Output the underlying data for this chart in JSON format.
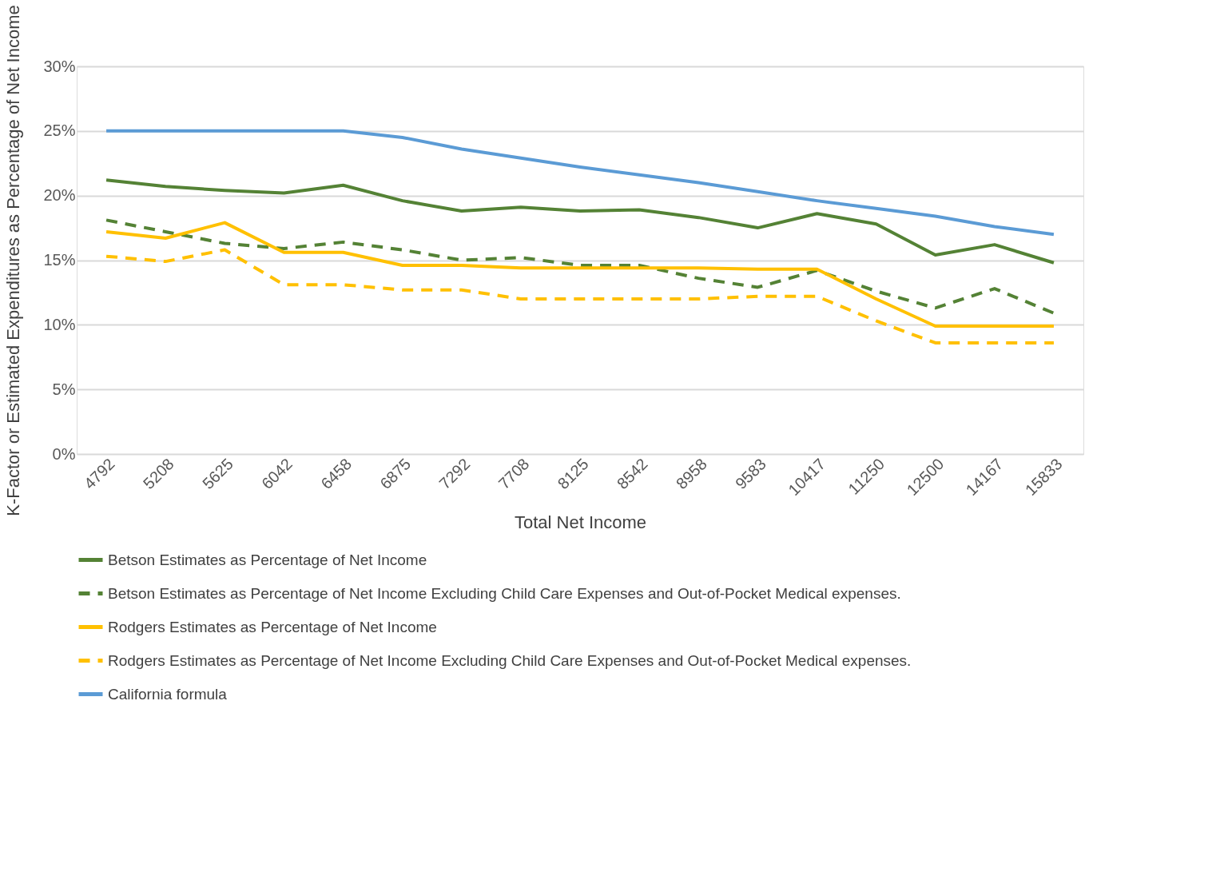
{
  "chart_data": {
    "type": "line",
    "xlabel": "Total Net Income",
    "ylabel": "K-Factor or Estimated Expenditures as Percentage of Net Income",
    "categories": [
      "4792",
      "5208",
      "5625",
      "6042",
      "6458",
      "6875",
      "7292",
      "7708",
      "8125",
      "8542",
      "8958",
      "9583",
      "10417",
      "11250",
      "12500",
      "14167",
      "15833"
    ],
    "series": [
      {
        "name": "Betson Estimates as Percentage of Net Income",
        "color": "#548235",
        "line_style": "solid",
        "values": [
          21.2,
          20.7,
          20.4,
          20.2,
          20.8,
          19.6,
          18.8,
          19.1,
          18.8,
          18.9,
          18.3,
          17.5,
          18.6,
          17.8,
          15.4,
          16.2,
          14.8
        ]
      },
      {
        "name": "Betson Estimates as Percentage of Net Income Excluding Child Care Expenses and Out-of-Pocket Medical expenses.",
        "color": "#548235",
        "line_style": "dashed",
        "values": [
          18.1,
          17.2,
          16.3,
          15.9,
          16.4,
          15.8,
          15.0,
          15.2,
          14.6,
          14.6,
          13.6,
          12.9,
          14.2,
          12.6,
          11.3,
          12.8,
          10.9
        ]
      },
      {
        "name": "Rodgers Estimates as Percentage of Net Income",
        "color": "#ffc000",
        "line_style": "solid",
        "values": [
          17.2,
          16.7,
          17.9,
          15.6,
          15.6,
          14.6,
          14.6,
          14.4,
          14.4,
          14.4,
          14.4,
          14.3,
          14.3,
          12.0,
          9.9,
          9.9,
          9.9
        ]
      },
      {
        "name": "Rodgers Estimates as Percentage of Net Income Excluding Child Care Expenses and Out-of-Pocket Medical expenses.",
        "color": "#ffc000",
        "line_style": "dashed",
        "values": [
          15.3,
          14.9,
          15.8,
          13.1,
          13.1,
          12.7,
          12.7,
          12.0,
          12.0,
          12.0,
          12.0,
          12.2,
          12.2,
          10.3,
          8.6,
          8.6,
          8.6
        ]
      },
      {
        "name": "California formula",
        "color": "#5b9bd5",
        "line_style": "solid",
        "values": [
          25,
          25,
          25,
          25,
          25,
          24.5,
          23.6,
          22.9,
          22.2,
          21.6,
          21.0,
          20.3,
          19.6,
          19.0,
          18.4,
          17.6,
          17.0
        ]
      }
    ],
    "ylim": [
      0,
      30
    ],
    "yticks": [
      {
        "value": 0,
        "label": "0%"
      },
      {
        "value": 5,
        "label": "5%"
      },
      {
        "value": 10,
        "label": "10%"
      },
      {
        "value": 15,
        "label": "15%"
      },
      {
        "value": 20,
        "label": "20%"
      },
      {
        "value": 25,
        "label": "25%"
      },
      {
        "value": 30,
        "label": "30%"
      }
    ],
    "grid": "y",
    "legend": "bottom",
    "marker": "none"
  }
}
